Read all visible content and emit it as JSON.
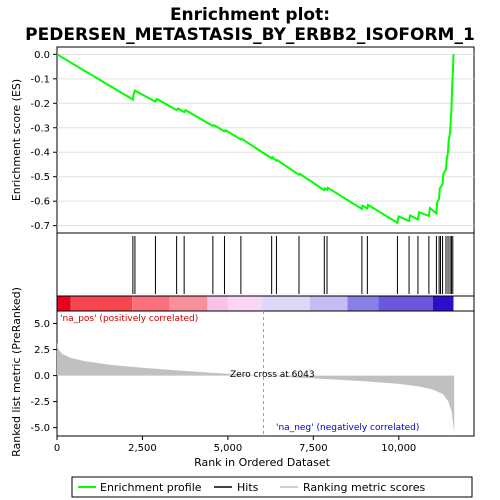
{
  "chart_data": {
    "type": "line",
    "title_line1": "Enrichment plot:",
    "title_line2": "PEDERSEN_METASTASIS_BY_ERBB2_ISOFORM_1",
    "es_panel": {
      "ylabel": "Enrichment score (ES)",
      "ylim": [
        -0.73,
        0.03
      ],
      "yticks": [
        "0.0",
        "-0.1",
        "-0.2",
        "-0.3",
        "-0.4",
        "-0.5",
        "-0.6",
        "-0.7"
      ],
      "ytick_values": [
        0.0,
        -0.1,
        -0.2,
        -0.3,
        -0.4,
        -0.5,
        -0.6,
        -0.7
      ],
      "line_color": "#00ff00",
      "points": [
        [
          0,
          0.0
        ],
        [
          2220,
          -0.185
        ],
        [
          2240,
          -0.165
        ],
        [
          2280,
          -0.148
        ],
        [
          2880,
          -0.193
        ],
        [
          2920,
          -0.182
        ],
        [
          3500,
          -0.228
        ],
        [
          3540,
          -0.221
        ],
        [
          3720,
          -0.236
        ],
        [
          3760,
          -0.228
        ],
        [
          4560,
          -0.293
        ],
        [
          4600,
          -0.29
        ],
        [
          4900,
          -0.315
        ],
        [
          4930,
          -0.31
        ],
        [
          5380,
          -0.348
        ],
        [
          5400,
          -0.345
        ],
        [
          6280,
          -0.425
        ],
        [
          6300,
          -0.42
        ],
        [
          6420,
          -0.435
        ],
        [
          6440,
          -0.432
        ],
        [
          7080,
          -0.492
        ],
        [
          7100,
          -0.488
        ],
        [
          7820,
          -0.555
        ],
        [
          7840,
          -0.548
        ],
        [
          7900,
          -0.553
        ],
        [
          7920,
          -0.545
        ],
        [
          8920,
          -0.632
        ],
        [
          8940,
          -0.618
        ],
        [
          9080,
          -0.63
        ],
        [
          9100,
          -0.615
        ],
        [
          9960,
          -0.688
        ],
        [
          9990,
          -0.662
        ],
        [
          10300,
          -0.68
        ],
        [
          10330,
          -0.658
        ],
        [
          10560,
          -0.675
        ],
        [
          10590,
          -0.645
        ],
        [
          10880,
          -0.66
        ],
        [
          10910,
          -0.628
        ],
        [
          11100,
          -0.65
        ],
        [
          11120,
          -0.605
        ],
        [
          11180,
          -0.59
        ],
        [
          11200,
          -0.548
        ],
        [
          11280,
          -0.53
        ],
        [
          11300,
          -0.49
        ],
        [
          11380,
          -0.47
        ],
        [
          11400,
          -0.43
        ],
        [
          11440,
          -0.4
        ],
        [
          11460,
          -0.35
        ],
        [
          11500,
          -0.32
        ],
        [
          11520,
          -0.26
        ],
        [
          11540,
          -0.23
        ],
        [
          11560,
          -0.14
        ],
        [
          11580,
          -0.08
        ],
        [
          11600,
          0.0
        ]
      ]
    },
    "hits_panel": {
      "hit_positions": [
        2220,
        2280,
        2880,
        3500,
        3720,
        4560,
        4900,
        5380,
        6280,
        6420,
        7080,
        7820,
        7900,
        8920,
        9080,
        9960,
        10300,
        10560,
        10880,
        11100,
        11180,
        11220,
        11280,
        11380,
        11440,
        11500,
        11540,
        11580
      ]
    },
    "colorbar": {
      "segments": [
        {
          "from": 0,
          "to": 400,
          "color": "#e8001e"
        },
        {
          "from": 400,
          "to": 2200,
          "color": "#f5454f"
        },
        {
          "from": 2200,
          "to": 3300,
          "color": "#f7707b"
        },
        {
          "from": 3300,
          "to": 4400,
          "color": "#f7909a"
        },
        {
          "from": 4400,
          "to": 5000,
          "color": "#f9c3e8"
        },
        {
          "from": 5000,
          "to": 6000,
          "color": "#fbd6f3"
        },
        {
          "from": 6000,
          "to": 7400,
          "color": "#dcd8f7"
        },
        {
          "from": 7400,
          "to": 8500,
          "color": "#c2bdf2"
        },
        {
          "from": 8500,
          "to": 9400,
          "color": "#8a7ee8"
        },
        {
          "from": 9400,
          "to": 11000,
          "color": "#6a59e0"
        },
        {
          "from": 11000,
          "to": 11600,
          "color": "#2a10c8"
        }
      ]
    },
    "metric_panel": {
      "ylabel": "Ranked list metric (PreRanked)",
      "ylim": [
        -5.8,
        6.2
      ],
      "yticks": [
        "5.0",
        "2.5",
        "0.0",
        "-2.5",
        "-5.0"
      ],
      "ytick_values": [
        5.0,
        2.5,
        0.0,
        -2.5,
        -5.0
      ],
      "fill_color": "#c0c0c0",
      "curve": [
        [
          0,
          3.2
        ],
        [
          50,
          2.5
        ],
        [
          150,
          2.1
        ],
        [
          400,
          1.7
        ],
        [
          800,
          1.4
        ],
        [
          1500,
          1.05
        ],
        [
          2500,
          0.75
        ],
        [
          3500,
          0.5
        ],
        [
          4500,
          0.28
        ],
        [
          5500,
          0.08
        ],
        [
          6043,
          0.0
        ],
        [
          7000,
          -0.18
        ],
        [
          8000,
          -0.35
        ],
        [
          9000,
          -0.55
        ],
        [
          10000,
          -0.8
        ],
        [
          10600,
          -1.05
        ],
        [
          11000,
          -1.35
        ],
        [
          11300,
          -1.8
        ],
        [
          11450,
          -2.5
        ],
        [
          11550,
          -3.5
        ],
        [
          11620,
          -5.5
        ]
      ],
      "zero_cross_label": "Zero cross at 6043",
      "zero_cross_x": 6043,
      "pos_label": "'na_pos' (positively correlated)",
      "neg_label": "'na_neg' (negatively correlated)",
      "pos_color": "#cc0000",
      "neg_color": "#0000cc"
    },
    "x_axis": {
      "xlabel": "Rank in Ordered Dataset",
      "xlim": [
        0,
        12200
      ],
      "xticks": [
        "0",
        "2,500",
        "5,000",
        "7,500",
        "10,000"
      ],
      "xtick_values": [
        0,
        2500,
        5000,
        7500,
        10000
      ]
    },
    "legend": {
      "items": [
        {
          "label": "Enrichment profile",
          "color": "#00ff00",
          "kind": "line"
        },
        {
          "label": "Hits",
          "color": "#000000",
          "kind": "line"
        },
        {
          "label": "Ranking metric scores",
          "color": "#c0c0c0",
          "kind": "line"
        }
      ]
    }
  }
}
